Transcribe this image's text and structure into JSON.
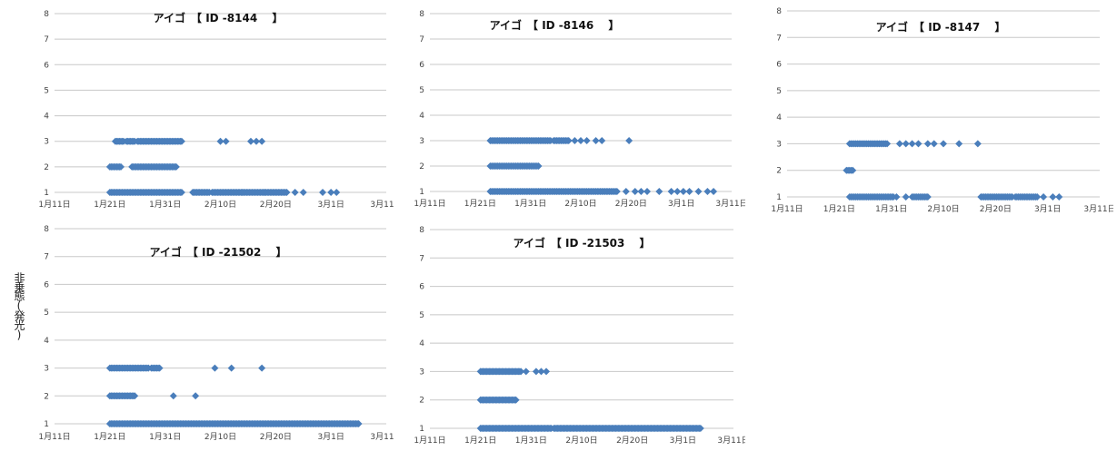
{
  "figure": {
    "ylabel": "非乗態(発光)"
  },
  "chart_data": [
    {
      "type": "scatter",
      "title": "アイゴ　【 ID -8144　 】",
      "x_ticks": [
        "1月11日",
        "1月21日",
        "1月31日",
        "2月10日",
        "2月20日",
        "3月1日",
        "3月11日"
      ],
      "y_ticks": [
        "1",
        "2",
        "3",
        "4",
        "5",
        "6",
        "7",
        "8"
      ],
      "xlim": [
        0,
        60
      ],
      "ylim": [
        1,
        8
      ],
      "grid": true,
      "legend": "none",
      "series": [
        {
          "y": 3,
          "segments": [
            [
              11,
              12.5
            ],
            [
              13,
              14.5
            ],
            [
              15,
              23
            ]
          ],
          "points": [
            30,
            31,
            35.5,
            36.5,
            37.5
          ]
        },
        {
          "y": 2,
          "segments": [
            [
              10,
              12
            ],
            [
              14,
              22
            ]
          ],
          "points": []
        },
        {
          "y": 1,
          "segments": [
            [
              10,
              23
            ],
            [
              25,
              28
            ],
            [
              28.5,
              34
            ],
            [
              34,
              38
            ],
            [
              38,
              42
            ]
          ],
          "points": [
            43.5,
            45,
            48.5,
            50,
            51
          ]
        }
      ]
    },
    {
      "type": "scatter",
      "title": "アイゴ　【 ID -8146　 】",
      "x_ticks": [
        "1月11日",
        "1月21日",
        "1月31日",
        "2月10日",
        "2月20日",
        "3月1日",
        "3月11日"
      ],
      "y_ticks": [
        "1",
        "2",
        "3",
        "4",
        "5",
        "6",
        "7",
        "8"
      ],
      "xlim": [
        0,
        50
      ],
      "ylim": [
        1,
        8
      ],
      "grid": true,
      "legend": "none",
      "series": [
        {
          "y": 3,
          "segments": [
            [
              10,
              20
            ],
            [
              20.5,
              23
            ]
          ],
          "points": [
            24,
            25,
            26,
            27.5,
            28.5,
            33
          ]
        },
        {
          "y": 2,
          "segments": [
            [
              10,
              18
            ]
          ],
          "points": []
        },
        {
          "y": 1,
          "segments": [
            [
              10,
              31
            ]
          ],
          "points": [
            32.5,
            34,
            35,
            36,
            38,
            40,
            41,
            42,
            43,
            44.5,
            46,
            47
          ]
        }
      ]
    },
    {
      "type": "scatter",
      "title": "アイゴ　【 ID -8147　 】",
      "x_ticks": [
        "1月11日",
        "1月21日",
        "1月31日",
        "2月10日",
        "2月20日",
        "3月1日",
        "3月11日"
      ],
      "y_ticks": [
        "1",
        "2",
        "3",
        "4",
        "5",
        "6",
        "7",
        "8"
      ],
      "xlim": [
        0,
        50
      ],
      "ylim": [
        1,
        8
      ],
      "grid": true,
      "legend": "none",
      "series": [
        {
          "y": 3,
          "segments": [
            [
              10,
              16
            ]
          ],
          "points": [
            18,
            19,
            20,
            21,
            22.5,
            23.5,
            25,
            27.5,
            30.5
          ]
        },
        {
          "y": 2,
          "segments": [
            [
              9.5,
              10.5
            ]
          ],
          "points": []
        },
        {
          "y": 1,
          "segments": [
            [
              10,
              17
            ],
            [
              20,
              22.5
            ],
            [
              31,
              36
            ],
            [
              36.5,
              40
            ]
          ],
          "points": [
            17.5,
            19,
            41,
            42.5,
            43.5
          ]
        }
      ]
    },
    {
      "type": "scatter",
      "title": "アイゴ　【 ID -21502　 】",
      "x_ticks": [
        "1月11日",
        "1月21日",
        "1月31日",
        "2月10日",
        "2月20日",
        "3月1日",
        "3月11日"
      ],
      "y_ticks": [
        "1",
        "2",
        "3",
        "4",
        "5",
        "6",
        "7",
        "8"
      ],
      "xlim": [
        0,
        60
      ],
      "ylim": [
        1,
        8
      ],
      "grid": true,
      "legend": "none",
      "series": [
        {
          "y": 3,
          "segments": [
            [
              10,
              17
            ],
            [
              17.5,
              19
            ]
          ],
          "points": [
            29,
            32,
            37.5
          ]
        },
        {
          "y": 2,
          "segments": [
            [
              10,
              14.5
            ]
          ],
          "points": [
            21.5,
            25.5
          ]
        },
        {
          "y": 1,
          "segments": [
            [
              10,
              55
            ]
          ],
          "points": []
        }
      ]
    },
    {
      "type": "scatter",
      "title": "アイゴ　【 ID -21503　 】",
      "x_ticks": [
        "1月11日",
        "1月21日",
        "1月31日",
        "2月10日",
        "2月20日",
        "3月1日",
        "3月11日"
      ],
      "y_ticks": [
        "1",
        "2",
        "3",
        "4",
        "5",
        "6",
        "7",
        "8"
      ],
      "xlim": [
        0,
        60
      ],
      "ylim": [
        1,
        8
      ],
      "grid": true,
      "legend": "none",
      "series": [
        {
          "y": 3,
          "segments": [
            [
              10,
              18
            ]
          ],
          "points": [
            19,
            21,
            22,
            23
          ]
        },
        {
          "y": 2,
          "segments": [
            [
              10,
              17
            ]
          ],
          "points": []
        },
        {
          "y": 1,
          "segments": [
            [
              10,
              24
            ],
            [
              24.5,
              53.5
            ]
          ],
          "points": []
        }
      ]
    }
  ]
}
